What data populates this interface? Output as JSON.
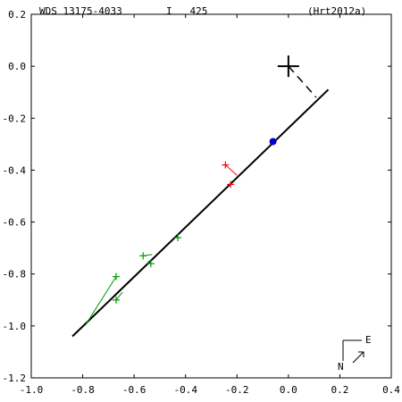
{
  "header": {
    "wds": "WDS 13175-4033",
    "disc": "I   425",
    "ref": "(Hrt2012a)"
  },
  "compass": {
    "north": "N",
    "east": "E"
  },
  "chart_data": {
    "type": "scatter",
    "title": "",
    "xlabel": "",
    "ylabel": "",
    "xlim": [
      -1.0,
      0.4
    ],
    "ylim": [
      -1.2,
      0.2
    ],
    "x_ticks": [
      -1.0,
      -0.8,
      -0.6,
      -0.4,
      -0.2,
      0.0,
      0.2,
      0.4
    ],
    "y_ticks": [
      0.2,
      0.0,
      -0.2,
      -0.4,
      -0.6,
      -0.8,
      -1.0,
      -1.2
    ],
    "x_tick_labels": [
      "-1.0",
      "-0.8",
      "-0.6",
      "-0.4",
      "-0.2",
      "0.0",
      "0.2",
      "0.4"
    ],
    "y_tick_labels": [
      "0.2",
      "0.0",
      "-0.2",
      "-0.4",
      "-0.6",
      "-0.8",
      "-1.0",
      "-1.2"
    ],
    "primary": {
      "x": 0.0,
      "y": 0.0
    },
    "orbit_line": {
      "x1": -0.84,
      "y1": -1.04,
      "x2": 0.155,
      "y2": -0.09
    },
    "node_line": {
      "x1": 0.0,
      "y1": 0.0,
      "x2": 0.108,
      "y2": -0.12
    },
    "predicted": {
      "x": -0.06,
      "y": -0.29
    },
    "measures_green": [
      {
        "x": -0.67,
        "y": -0.81,
        "ox": -0.785,
        "oy": -0.99
      },
      {
        "x": -0.67,
        "y": -0.9,
        "ox": -0.645,
        "oy": -0.87
      },
      {
        "x": -0.565,
        "y": -0.73,
        "ox": -0.53,
        "oy": -0.725
      },
      {
        "x": -0.535,
        "y": -0.76,
        "ox": -0.545,
        "oy": -0.75
      },
      {
        "x": -0.43,
        "y": -0.66,
        "ox": -0.435,
        "oy": -0.66
      }
    ],
    "measures_red": [
      {
        "x": -0.225,
        "y": -0.455,
        "ox": -0.22,
        "oy": -0.45
      },
      {
        "x": -0.245,
        "y": -0.38,
        "ox": -0.2,
        "oy": -0.42
      }
    ],
    "colors": {
      "axis": "#000000",
      "orbit": "#000000",
      "green": "#009900",
      "red": "#ff0000",
      "predicted": "#0000cc"
    }
  }
}
